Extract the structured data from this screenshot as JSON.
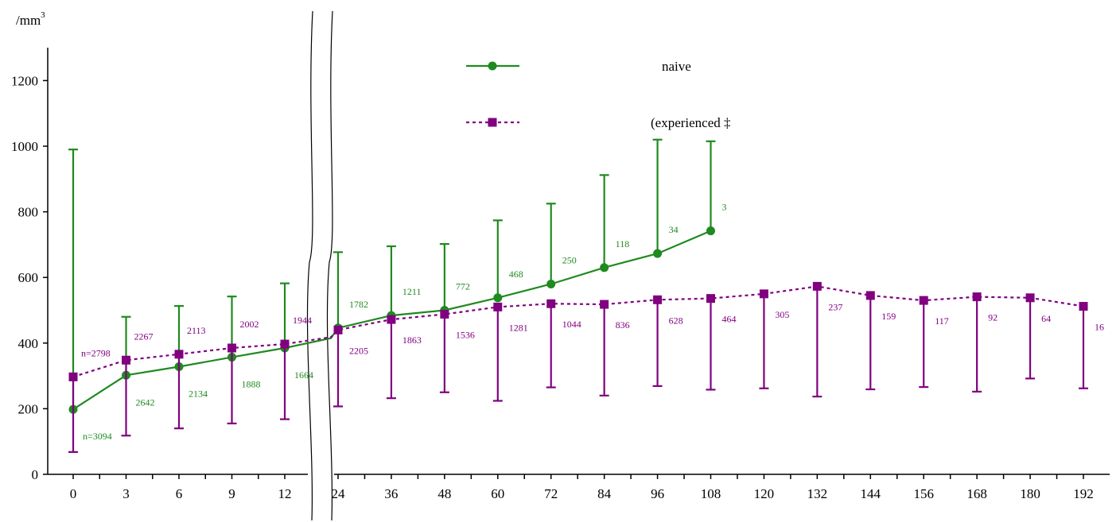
{
  "chart_data": {
    "type": "line",
    "ylabel": "/mm",
    "ylabel_superscript": "3",
    "ylim": [
      0,
      1300
    ],
    "yticks": [
      0,
      200,
      400,
      600,
      800,
      1000,
      1200
    ],
    "x_left": [
      0,
      3,
      6,
      9,
      12
    ],
    "x_right": [
      24,
      36,
      48,
      60,
      72,
      84,
      96,
      108,
      120,
      132,
      144,
      156,
      168,
      180,
      192
    ],
    "axis_break": "between 12 and 24",
    "legend_placement": "top-center",
    "series": [
      {
        "name": "naive",
        "color": "#1f8a1f",
        "marker": "circle",
        "line": "solid",
        "error_direction": "up",
        "left": {
          "x": [
            0,
            3,
            6,
            9,
            12
          ],
          "y": [
            198,
            302,
            328,
            357,
            385
          ],
          "err": [
            990,
            480,
            513,
            542,
            582
          ],
          "counts": [
            "n=3094",
            "2642",
            "2134",
            "1888",
            "1664"
          ]
        },
        "right": {
          "x": [
            24,
            36,
            48,
            60,
            72,
            84,
            96,
            108
          ],
          "y": [
            446,
            484,
            500,
            538,
            580,
            630,
            673,
            742
          ],
          "err": [
            677,
            695,
            702,
            774,
            825,
            912,
            1020,
            1015
          ],
          "counts": [
            "1782",
            "1211",
            "772",
            "468",
            "250",
            "118",
            "34",
            "3"
          ]
        },
        "bridge_y": 415
      },
      {
        "name": "(experienced  ‡",
        "color": "#800080",
        "marker": "square",
        "line": "dashed",
        "error_direction": "down",
        "left": {
          "x": [
            0,
            3,
            6,
            9,
            12
          ],
          "y": [
            297,
            348,
            366,
            385,
            397
          ],
          "err": [
            68,
            118,
            140,
            155,
            168
          ],
          "counts": [
            "n=2798",
            "2267",
            "2113",
            "2002",
            "1944"
          ]
        },
        "right": {
          "x": [
            24,
            36,
            48,
            60,
            72,
            84,
            96,
            108,
            120,
            132,
            144,
            156,
            168,
            180,
            192
          ],
          "y": [
            440,
            472,
            488,
            510,
            520,
            518,
            532,
            536,
            550,
            573,
            545,
            530,
            541,
            538,
            512
          ],
          "err": [
            207,
            232,
            250,
            224,
            265,
            240,
            269,
            258,
            262,
            237,
            259,
            266,
            252,
            292,
            262
          ],
          "counts": [
            "2205",
            "1863",
            "1536",
            "1281",
            "1044",
            "836",
            "628",
            "464",
            "305",
            "237",
            "159",
            "117",
            "92",
            "64",
            "16"
          ]
        },
        "bridge_y": 418
      }
    ]
  }
}
